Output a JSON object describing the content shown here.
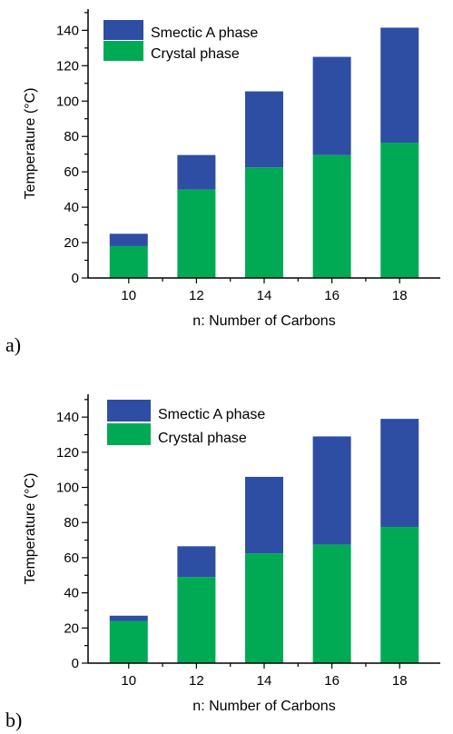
{
  "colors": {
    "smectic": "#2E4EA3",
    "crystal": "#00AA55",
    "axis": "#000000"
  },
  "chart_data": [
    {
      "type": "bar",
      "stacked": true,
      "panel_label": "a)",
      "categories": [
        "10",
        "12",
        "14",
        "16",
        "18"
      ],
      "series": [
        {
          "name": "Crystal phase",
          "values": [
            18,
            50,
            62.5,
            69.5,
            76.5
          ]
        },
        {
          "name": "Smectic A phase",
          "values": [
            7,
            19.5,
            43,
            55.5,
            65
          ]
        }
      ],
      "xlabel": "n: Number of Carbons",
      "ylabel": "Temperature (°C)",
      "ylim": [
        0,
        152
      ],
      "yticks": [
        "0",
        "20",
        "40",
        "60",
        "80",
        "100",
        "120",
        "140"
      ],
      "legend": {
        "placement": "top-left",
        "entries": [
          "Smectic A phase",
          "Crystal phase"
        ]
      },
      "grid": false
    },
    {
      "type": "bar",
      "stacked": true,
      "panel_label": "b)",
      "categories": [
        "10",
        "12",
        "14",
        "16",
        "18"
      ],
      "series": [
        {
          "name": "Crystal phase",
          "values": [
            24,
            49,
            62.5,
            67.5,
            77.5
          ]
        },
        {
          "name": "Smectic A phase",
          "values": [
            3,
            17.5,
            43.5,
            61.5,
            61.5
          ]
        }
      ],
      "xlabel": "n: Number of Carbons",
      "ylabel": "Temperature (°C)",
      "ylim": [
        0,
        153
      ],
      "yticks": [
        "0",
        "20",
        "40",
        "60",
        "80",
        "100",
        "120",
        "140"
      ],
      "legend": {
        "placement": "top-left",
        "entries": [
          "Smectic A phase",
          "Crystal phase"
        ]
      },
      "grid": false
    }
  ]
}
